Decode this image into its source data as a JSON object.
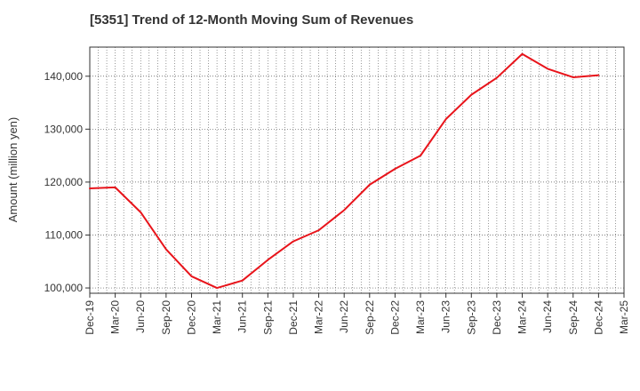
{
  "chart_data": {
    "type": "line",
    "title": "[5351]  Trend of 12-Month Moving Sum of Revenues",
    "xlabel": "",
    "ylabel": "Amount (million yen)",
    "x_ticks": [
      "Dec-19",
      "Mar-20",
      "Jun-20",
      "Sep-20",
      "Dec-20",
      "Mar-21",
      "Jun-21",
      "Sep-21",
      "Dec-21",
      "Mar-22",
      "Jun-22",
      "Sep-22",
      "Dec-22",
      "Mar-23",
      "Jun-23",
      "Sep-23",
      "Dec-23",
      "Mar-24",
      "Jun-24",
      "Sep-24",
      "Dec-24",
      "Mar-25"
    ],
    "y_ticks": [
      100000,
      110000,
      120000,
      130000,
      140000
    ],
    "y_tick_labels": [
      "100,000",
      "110,000",
      "120,000",
      "130,000",
      "140,000"
    ],
    "ylim": [
      99000,
      145500
    ],
    "grid": true,
    "series": [
      {
        "color": "#e8141b",
        "x": [
          "Dec-19",
          "Mar-20",
          "Jun-20",
          "Sep-20",
          "Dec-20",
          "Mar-21",
          "Jun-21",
          "Sep-21",
          "Dec-21",
          "Mar-22",
          "Jun-22",
          "Sep-22",
          "Dec-22",
          "Mar-23",
          "Jun-23",
          "Sep-23",
          "Dec-23",
          "Mar-24",
          "Jun-24",
          "Sep-24",
          "Dec-24"
        ],
        "values": [
          118800,
          119000,
          114300,
          107300,
          102200,
          100000,
          101400,
          105300,
          108800,
          110900,
          114700,
          119500,
          122500,
          125000,
          131900,
          136500,
          139700,
          144200,
          141400,
          139800,
          140200
        ]
      }
    ]
  }
}
